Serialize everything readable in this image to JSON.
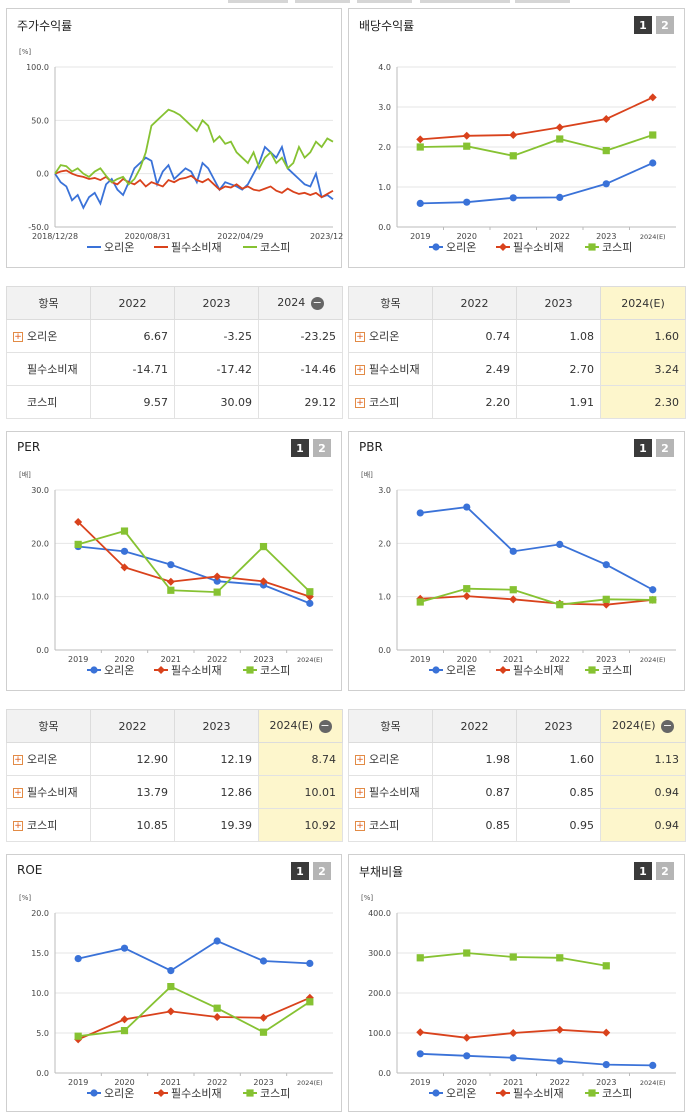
{
  "colors": {
    "blue": "#3a72d8",
    "red": "#d9421c",
    "green": "#86c232"
  },
  "legend": [
    "오리온",
    "필수소비재",
    "코스피"
  ],
  "tab_labels": [
    "1",
    "2"
  ],
  "panels": {
    "stock_return": {
      "title": "주가수익률"
    },
    "dividend": {
      "title": "배당수익률"
    },
    "per": {
      "title": "PER"
    },
    "pbr": {
      "title": "PBR"
    },
    "roe": {
      "title": "ROE"
    },
    "debt": {
      "title": "부채비율"
    }
  },
  "tables": {
    "stock_return": {
      "header": [
        "항목",
        "2022",
        "2023",
        "2024"
      ],
      "rows": [
        {
          "label": "오리온",
          "values": [
            "6.67",
            "-3.25",
            "-23.25"
          ],
          "expand": true
        },
        {
          "label": "필수소비재",
          "values": [
            "-14.71",
            "-17.42",
            "-14.46"
          ],
          "expand": false
        },
        {
          "label": "코스피",
          "values": [
            "9.57",
            "30.09",
            "29.12"
          ],
          "expand": false
        }
      ]
    },
    "dividend": {
      "header": [
        "항목",
        "2022",
        "2023",
        "2024(E)"
      ],
      "rows": [
        {
          "label": "오리온",
          "values": [
            "0.74",
            "1.08",
            "1.60"
          ],
          "expand": true
        },
        {
          "label": "필수소비재",
          "values": [
            "2.49",
            "2.70",
            "3.24"
          ],
          "expand": true
        },
        {
          "label": "코스피",
          "values": [
            "2.20",
            "1.91",
            "2.30"
          ],
          "expand": true
        }
      ]
    },
    "per": {
      "header": [
        "항목",
        "2022",
        "2023",
        "2024(E)"
      ],
      "rows": [
        {
          "label": "오리온",
          "values": [
            "12.90",
            "12.19",
            "8.74"
          ],
          "expand": true
        },
        {
          "label": "필수소비재",
          "values": [
            "13.79",
            "12.86",
            "10.01"
          ],
          "expand": true
        },
        {
          "label": "코스피",
          "values": [
            "10.85",
            "19.39",
            "10.92"
          ],
          "expand": true
        }
      ]
    },
    "pbr": {
      "header": [
        "항목",
        "2022",
        "2023",
        "2024(E)"
      ],
      "rows": [
        {
          "label": "오리온",
          "values": [
            "1.98",
            "1.60",
            "1.13"
          ],
          "expand": true
        },
        {
          "label": "필수소비재",
          "values": [
            "0.87",
            "0.85",
            "0.94"
          ],
          "expand": true
        },
        {
          "label": "코스피",
          "values": [
            "0.85",
            "0.95",
            "0.94"
          ],
          "expand": true
        }
      ]
    }
  },
  "chart_data": [
    {
      "id": "stock_return",
      "type": "line",
      "unit": "[%]",
      "ylim": [
        -50,
        100
      ],
      "yticks": [
        "100.0",
        "50.0",
        "0.0",
        "-50.0"
      ],
      "xticks": [
        "2018/12/28",
        "2020/08/31",
        "2022/04/29",
        "2023/12/28"
      ],
      "series": [
        {
          "name": "오리온",
          "values": [
            0,
            -8,
            -12,
            -25,
            -20,
            -32,
            -22,
            -18,
            -28,
            -10,
            -5,
            -15,
            -20,
            -8,
            5,
            10,
            15,
            12,
            -10,
            2,
            8,
            -5,
            0,
            5,
            2,
            -8,
            10,
            5,
            -5,
            -15,
            -8,
            -10,
            -12,
            -15,
            -10,
            0,
            10,
            25,
            20,
            15,
            25,
            5,
            0,
            -5,
            -10,
            -12,
            0,
            -22,
            -20,
            -24
          ]
        },
        {
          "name": "필수소비재",
          "values": [
            0,
            2,
            3,
            0,
            -2,
            -3,
            -5,
            -4,
            -6,
            -3,
            -8,
            -10,
            -5,
            -8,
            -10,
            -6,
            -12,
            -8,
            -10,
            -12,
            -6,
            -8,
            -5,
            -4,
            -2,
            -6,
            -8,
            -5,
            -10,
            -15,
            -12,
            -13,
            -10,
            -14,
            -12,
            -15,
            -16,
            -14,
            -12,
            -16,
            -18,
            -14,
            -17,
            -19,
            -18,
            -20,
            -18,
            -22,
            -19,
            -16
          ]
        },
        {
          "name": "코스피",
          "values": [
            0,
            8,
            7,
            2,
            5,
            0,
            -3,
            2,
            5,
            -2,
            -8,
            -5,
            -3,
            -10,
            -5,
            5,
            20,
            45,
            50,
            55,
            60,
            58,
            55,
            50,
            45,
            40,
            50,
            45,
            30,
            35,
            28,
            30,
            20,
            15,
            10,
            20,
            5,
            15,
            20,
            10,
            15,
            5,
            10,
            25,
            15,
            20,
            30,
            25,
            33,
            30
          ]
        }
      ]
    },
    {
      "id": "dividend",
      "type": "line",
      "unit": "",
      "ylim": [
        0,
        4
      ],
      "yticks": [
        "4.0",
        "3.0",
        "2.0",
        "1.0",
        "0.0"
      ],
      "categories": [
        "2019",
        "2020",
        "2021",
        "2022",
        "2023",
        "2024(E)"
      ],
      "series": [
        {
          "name": "오리온",
          "values": [
            0.59,
            0.62,
            0.73,
            0.74,
            1.08,
            1.6
          ]
        },
        {
          "name": "필수소비재",
          "values": [
            2.19,
            2.28,
            2.3,
            2.49,
            2.7,
            3.24
          ]
        },
        {
          "name": "코스피",
          "values": [
            2.0,
            2.02,
            1.78,
            2.2,
            1.91,
            2.3
          ]
        }
      ]
    },
    {
      "id": "per",
      "type": "line",
      "unit": "[배]",
      "ylim": [
        0,
        30
      ],
      "yticks": [
        "30.0",
        "20.0",
        "10.0",
        "0.0"
      ],
      "categories": [
        "2019",
        "2020",
        "2021",
        "2022",
        "2023",
        "2024(E)"
      ],
      "series": [
        {
          "name": "오리온",
          "values": [
            19.4,
            18.5,
            16.0,
            12.9,
            12.19,
            8.74
          ]
        },
        {
          "name": "필수소비재",
          "values": [
            24.0,
            15.5,
            12.8,
            13.79,
            12.86,
            10.01
          ]
        },
        {
          "name": "코스피",
          "values": [
            19.8,
            22.3,
            11.2,
            10.85,
            19.39,
            10.92
          ]
        }
      ]
    },
    {
      "id": "pbr",
      "type": "line",
      "unit": "[배]",
      "ylim": [
        0,
        3
      ],
      "yticks": [
        "3.0",
        "2.0",
        "1.0",
        "0.0"
      ],
      "categories": [
        "2019",
        "2020",
        "2021",
        "2022",
        "2023",
        "2024(E)"
      ],
      "series": [
        {
          "name": "오리온",
          "values": [
            2.57,
            2.68,
            1.85,
            1.98,
            1.6,
            1.13
          ]
        },
        {
          "name": "필수소비재",
          "values": [
            0.96,
            1.01,
            0.95,
            0.87,
            0.85,
            0.94
          ]
        },
        {
          "name": "코스피",
          "values": [
            0.9,
            1.15,
            1.13,
            0.85,
            0.95,
            0.94
          ]
        }
      ]
    },
    {
      "id": "roe",
      "type": "line",
      "unit": "[%]",
      "ylim": [
        0,
        20
      ],
      "yticks": [
        "20.0",
        "15.0",
        "10.0",
        "5.0",
        "0.0"
      ],
      "categories": [
        "2019",
        "2020",
        "2021",
        "2022",
        "2023",
        "2024(E)"
      ],
      "series": [
        {
          "name": "오리온",
          "values": [
            14.3,
            15.6,
            12.8,
            16.5,
            14.0,
            13.7
          ]
        },
        {
          "name": "필수소비재",
          "values": [
            4.2,
            6.7,
            7.7,
            7.0,
            6.9,
            9.4
          ]
        },
        {
          "name": "코스피",
          "values": [
            4.6,
            5.3,
            10.8,
            8.1,
            5.1,
            8.9
          ]
        }
      ]
    },
    {
      "id": "debt",
      "type": "line",
      "unit": "[%]",
      "ylim": [
        0,
        400
      ],
      "yticks": [
        "400.0",
        "300.0",
        "200.0",
        "100.0",
        "0.0"
      ],
      "categories": [
        "2019",
        "2020",
        "2021",
        "2022",
        "2023",
        "2024(E)"
      ],
      "series": [
        {
          "name": "오리온",
          "values": [
            48,
            43,
            38,
            30,
            21,
            19
          ]
        },
        {
          "name": "필수소비재",
          "values": [
            102,
            88,
            100,
            108,
            101,
            null
          ]
        },
        {
          "name": "코스피",
          "values": [
            288,
            300,
            290,
            288,
            268,
            null
          ]
        }
      ]
    }
  ]
}
